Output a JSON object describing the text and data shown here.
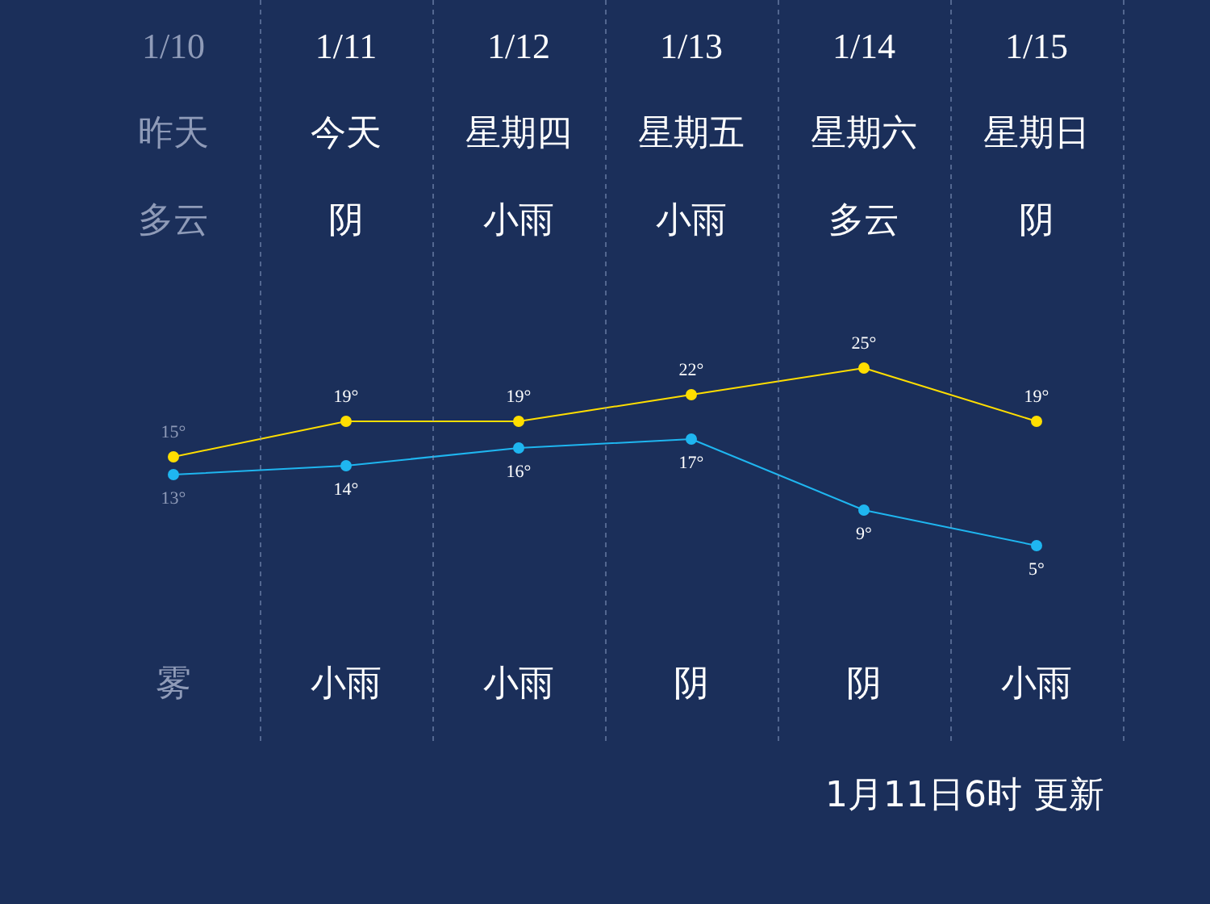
{
  "chart_data": {
    "type": "line",
    "categories": [
      "1/10",
      "1/11",
      "1/12",
      "1/13",
      "1/14",
      "1/15"
    ],
    "series": [
      {
        "color": "#ffde00",
        "values": [
          15,
          19,
          19,
          22,
          25,
          19
        ],
        "value_labels": [
          "15°",
          "19°",
          "19°",
          "22°",
          "25°",
          "19°"
        ]
      },
      {
        "color": "#1fb6f0",
        "values": [
          13,
          14,
          16,
          17,
          9,
          5
        ],
        "value_labels": [
          "13°",
          "14°",
          "16°",
          "17°",
          "9°",
          "5°"
        ]
      }
    ],
    "marker": "circle",
    "grid": "x",
    "annotations": [
      "昨天",
      "多云",
      "雾",
      "今天",
      "阴",
      "小雨",
      "星期四",
      "小雨",
      "小雨",
      "星期五",
      "小雨",
      "阴",
      "星期六",
      "多云",
      "阴",
      "星期日",
      "阴",
      "小雨",
      "1月11日6时 更新"
    ]
  }
}
